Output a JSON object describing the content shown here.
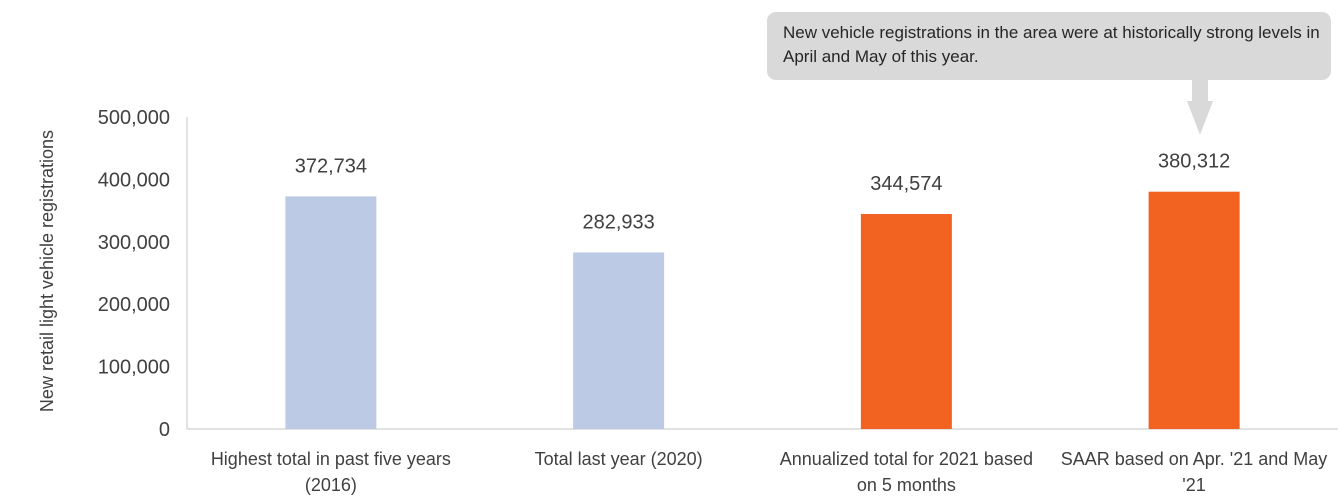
{
  "chart_data": {
    "type": "bar",
    "title": "",
    "xlabel": "",
    "ylabel": "New retail light vehicle registrations",
    "ylim": [
      0,
      500000
    ],
    "yticks": [
      "0",
      "100,000",
      "200,000",
      "300,000",
      "400,000",
      "500,000"
    ],
    "ytick_values": [
      0,
      100000,
      200000,
      300000,
      400000,
      500000
    ],
    "categories": [
      "Highest total in past five years (2016)",
      "Total last year (2020)",
      "Annualized total for 2021 based on 5 months",
      "SAAR based on Apr. '21 and May '21"
    ],
    "values": [
      372734,
      282933,
      344574,
      380312
    ],
    "value_labels": [
      "372,734",
      "282,933",
      "344,574",
      "380,312"
    ],
    "bar_colors": [
      "#bccae6",
      "#bccae6",
      "#f26322",
      "#f26322"
    ],
    "grid": false,
    "legend": "none"
  },
  "annotation": {
    "text": "New vehicle registrations in the area were at historically strong levels in April and May of this year."
  }
}
